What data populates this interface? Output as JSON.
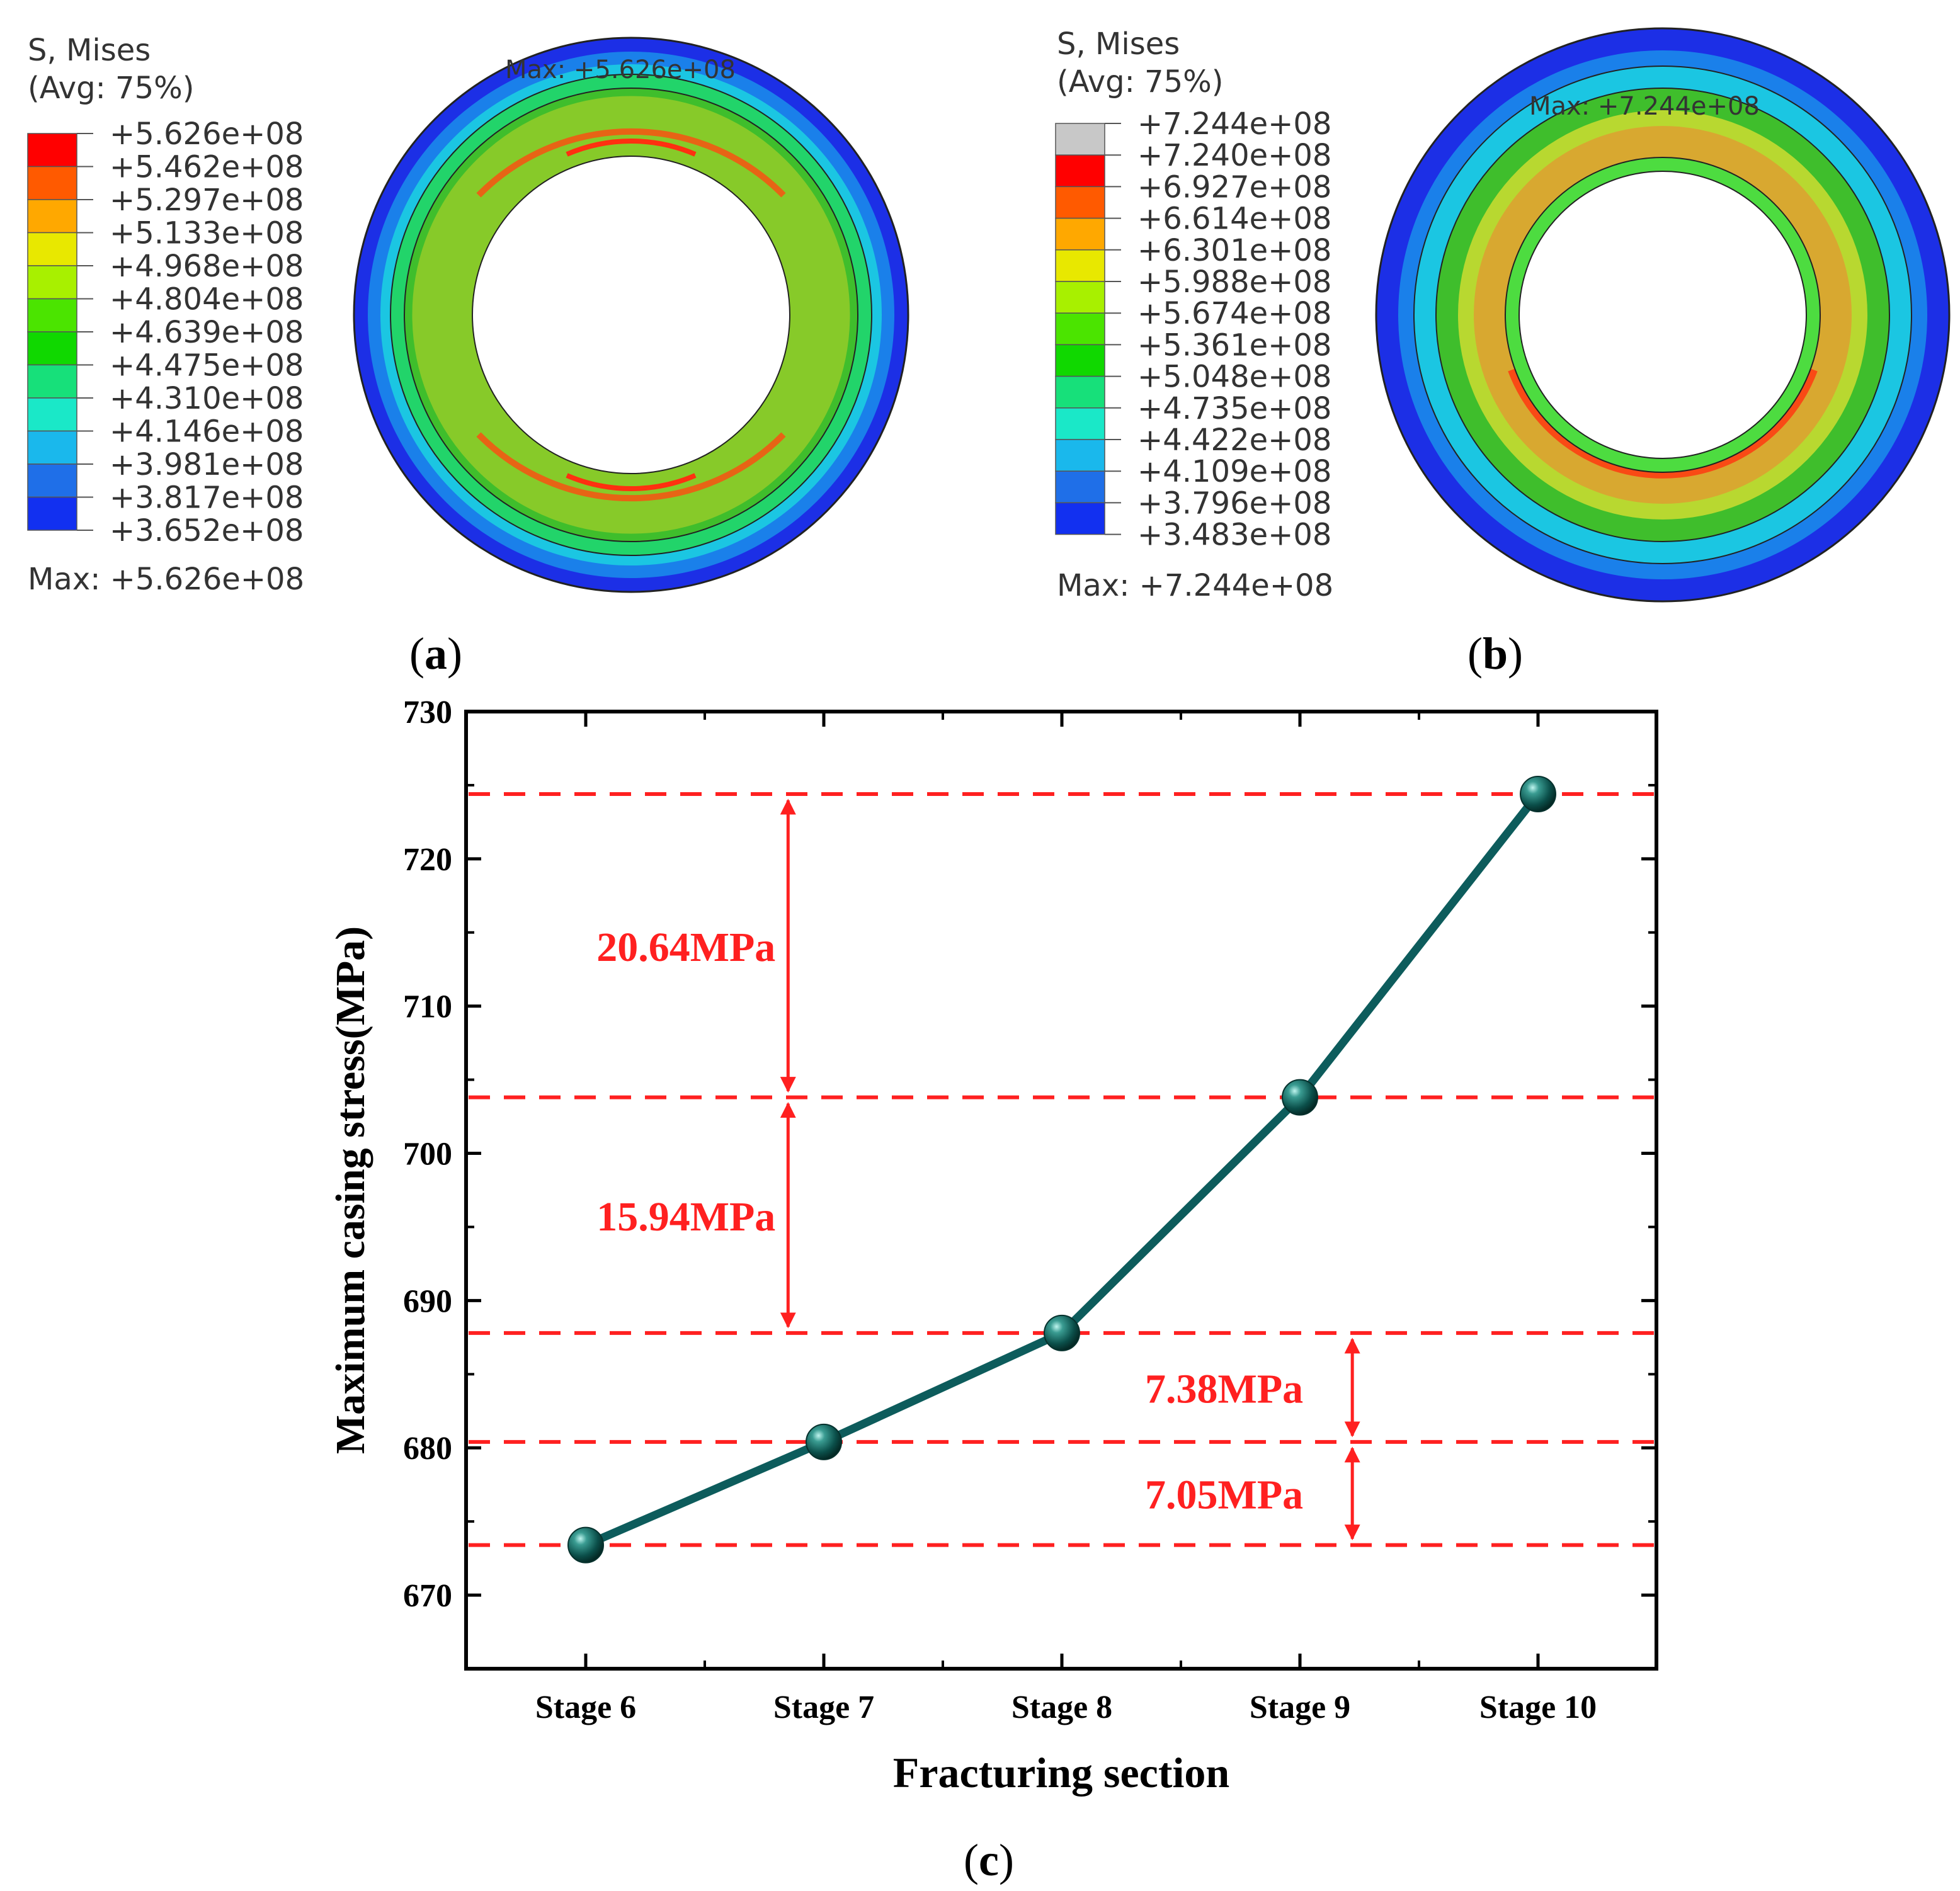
{
  "panels": {
    "a": {
      "label": "a",
      "legend": {
        "title_line1": "S, Mises",
        "title_line2": "(Avg: 75%)",
        "values": [
          "+5.626e+08",
          "+5.462e+08",
          "+5.297e+08",
          "+5.133e+08",
          "+4.968e+08",
          "+4.804e+08",
          "+4.639e+08",
          "+4.475e+08",
          "+4.310e+08",
          "+4.146e+08",
          "+3.981e+08",
          "+3.817e+08",
          "+3.652e+08"
        ],
        "colors": [
          "#ff0000",
          "#ff5a00",
          "#ffa800",
          "#e8e800",
          "#a8f000",
          "#4be400",
          "#10d800",
          "#17e07a",
          "#1ae8c8",
          "#1ab8ec",
          "#1f6fe8",
          "#1230f0",
          "#0a0ae6"
        ],
        "max_text": "Max: +5.626e+08"
      },
      "ring_max_label": "Max: +5.626e+08"
    },
    "b": {
      "label": "b",
      "legend": {
        "title_line1": "S, Mises",
        "title_line2": "(Avg: 75%)",
        "values": [
          "+7.244e+08",
          "+7.240e+08",
          "+6.927e+08",
          "+6.614e+08",
          "+6.301e+08",
          "+5.988e+08",
          "+5.674e+08",
          "+5.361e+08",
          "+5.048e+08",
          "+4.735e+08",
          "+4.422e+08",
          "+4.109e+08",
          "+3.796e+08",
          "+3.483e+08"
        ],
        "colors": [
          "#c8c8c8",
          "#ff0000",
          "#ff5a00",
          "#ffa800",
          "#e8e800",
          "#a8f000",
          "#4be400",
          "#10d800",
          "#17e07a",
          "#1ae8c8",
          "#1ab8ec",
          "#1f6fe8",
          "#1230f0",
          "#0a0ae6"
        ],
        "max_text": "Max: +7.244e+08"
      },
      "ring_max_label": "Max: +7.244e+08"
    },
    "c": {
      "label": "c"
    }
  },
  "chart_data": {
    "type": "line",
    "title": "",
    "xlabel": "Fracturing section",
    "ylabel": "Maximum casing stress(MPa)",
    "categories": [
      "Stage 6",
      "Stage 7",
      "Stage 8",
      "Stage 9",
      "Stage 10"
    ],
    "values": [
      673.4,
      680.4,
      687.8,
      703.8,
      724.4
    ],
    "ylim": [
      665,
      730
    ],
    "yticks": [
      670,
      680,
      690,
      700,
      710,
      720,
      730
    ],
    "line_color": "#0d5c5c",
    "reference_lines": [
      673.4,
      680.4,
      687.8,
      703.8,
      724.4
    ],
    "reference_color": "#ff2020",
    "annotations": [
      {
        "label": "20.64MPa",
        "from": 703.8,
        "to": 724.4,
        "category_pos": 0.85
      },
      {
        "label": "15.94MPa",
        "from": 687.8,
        "to": 703.8,
        "category_pos": 0.85
      },
      {
        "label": "7.38MPa",
        "from": 680.4,
        "to": 687.8,
        "category_pos": 3.22
      },
      {
        "label": "7.05MPa",
        "from": 673.4,
        "to": 680.4,
        "category_pos": 3.22
      }
    ]
  }
}
